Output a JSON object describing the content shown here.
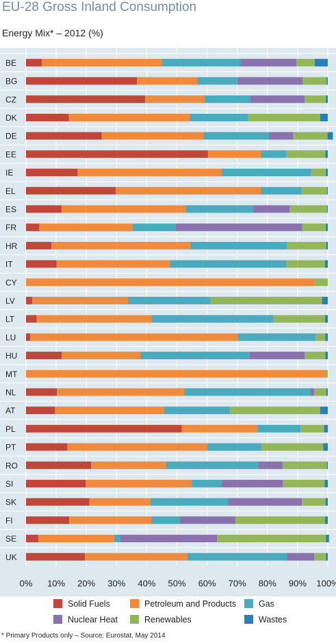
{
  "title": "EU-28 Gross Inland Consumption",
  "subtitle": "Energy Mix* – 2012 (%)",
  "footnote": "* Primary Products only – Source: Eurostat, May 2014",
  "chart_data": {
    "type": "bar",
    "orientation": "horizontal",
    "stacked": true,
    "categories": [
      "BE",
      "BG",
      "CZ",
      "DK",
      "DE",
      "EE",
      "IE",
      "EL",
      "ES",
      "FR",
      "HR",
      "IT",
      "CY",
      "LV",
      "LT",
      "LU",
      "HU",
      "MT",
      "NL",
      "AT",
      "PL",
      "PT",
      "RO",
      "SI",
      "SK",
      "FI",
      "SE",
      "UK"
    ],
    "xlim": [
      0,
      100
    ],
    "xticks": [
      "0%",
      "10%",
      "20%",
      "30%",
      "40%",
      "50%",
      "60%",
      "70%",
      "80%",
      "90%",
      "100%"
    ],
    "grid": true,
    "legend_position": "bottom",
    "series": [
      {
        "name": "Solid Fuels",
        "color": "#c0473a",
        "values": [
          5.3,
          36.8,
          39.5,
          14.2,
          25.1,
          60.3,
          17.1,
          29.7,
          11.8,
          4.4,
          8.4,
          10.1,
          0,
          2.1,
          3.5,
          1.4,
          11.8,
          0,
          10.2,
          9.6,
          51.6,
          13.7,
          21.6,
          19.8,
          21.0,
          14.3,
          4.1,
          19.5
        ]
      },
      {
        "name": "Petroleum and Products",
        "color": "#f08a3c",
        "values": [
          39.7,
          20.0,
          19.6,
          40.1,
          33.7,
          17.5,
          47.6,
          48.1,
          41.2,
          30.9,
          46.1,
          37.6,
          95.5,
          31.7,
          38.1,
          68.9,
          26.1,
          99.3,
          42.2,
          36.2,
          25.1,
          46.3,
          24.8,
          35.1,
          20.2,
          27.2,
          25.1,
          34.0
        ]
      },
      {
        "name": "Gas",
        "color": "#4aaabe",
        "values": [
          26.0,
          13.2,
          15.2,
          19.3,
          21.7,
          8.5,
          29.8,
          13.5,
          22.1,
          14.2,
          32.0,
          38.6,
          0,
          27.4,
          40.4,
          25.6,
          36.1,
          0,
          41.8,
          21.8,
          14.2,
          18.0,
          30.7,
          9.9,
          25.8,
          9.5,
          1.9,
          33.0
        ]
      },
      {
        "name": "Nuclear Heat",
        "color": "#8a72ae",
        "values": [
          18.6,
          21.7,
          18.0,
          0,
          8.1,
          0,
          0,
          0,
          12.2,
          42.0,
          0,
          0,
          0,
          0,
          0,
          0,
          18.3,
          0,
          1.3,
          0,
          0,
          0,
          7.9,
          20.3,
          24.4,
          18.4,
          32.2,
          9.0
        ]
      },
      {
        "name": "Renewables",
        "color": "#93b65a",
        "values": [
          6.1,
          7.9,
          7.1,
          23.9,
          11.3,
          12.9,
          4.9,
          8.4,
          12.5,
          7.9,
          13.0,
          12.8,
          4.5,
          36.9,
          17.1,
          3.3,
          6.9,
          0.7,
          4.0,
          29.9,
          7.9,
          20.5,
          14.7,
          13.9,
          7.9,
          29.7,
          36.1,
          3.9
        ]
      },
      {
        "name": "Wastes",
        "color": "#2b7fb5",
        "values": [
          4.3,
          0.4,
          0.6,
          2.5,
          1.8,
          0.8,
          0.6,
          0.3,
          0.2,
          0.6,
          0.5,
          0.9,
          0,
          1.9,
          0.9,
          0.8,
          0.8,
          0,
          0.5,
          2.5,
          1.2,
          1.5,
          0.3,
          1.0,
          0.7,
          0.9,
          1.0,
          0.6
        ]
      }
    ]
  }
}
